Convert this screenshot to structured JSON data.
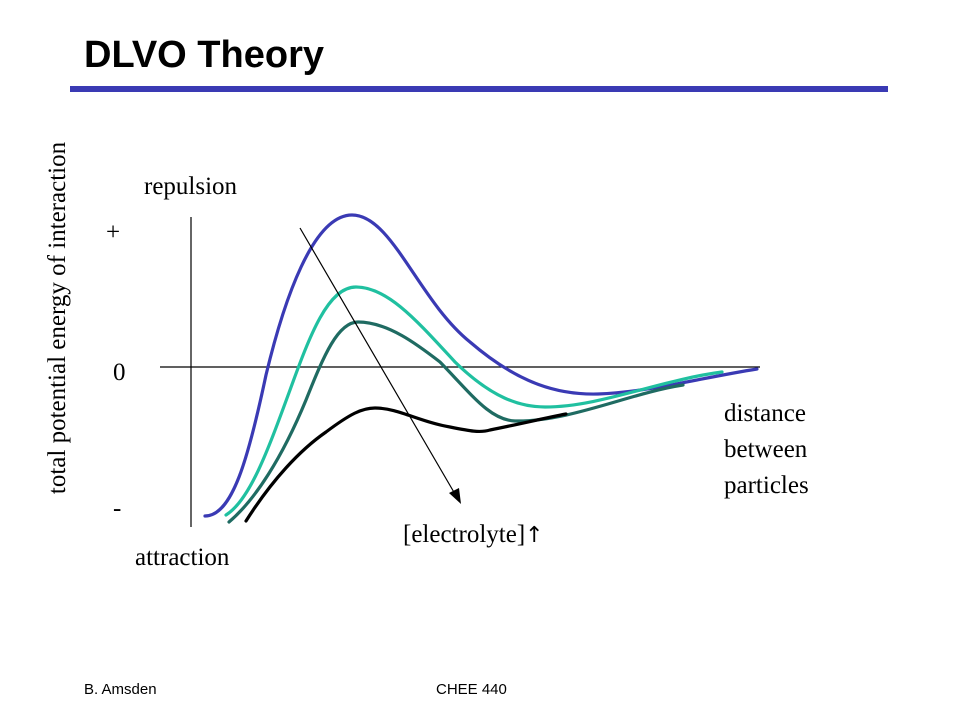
{
  "slide": {
    "title": "DLVO Theory",
    "footer_left": "B. Amsden",
    "footer_center": "CHEE 440"
  },
  "diagram": {
    "y_axis_label": "total potential energy  of interaction",
    "x_axis_label_lines": [
      "distance",
      "between",
      "particles"
    ],
    "top_label": "repulsion",
    "bottom_label": "attraction",
    "plus_sign": "+",
    "zero_mark": "0",
    "minus_sign": "-",
    "arrow_label": "[electrolyte]",
    "arrow_symbol": "↑",
    "curves": [
      {
        "color": "#3a3ab4"
      },
      {
        "color": "#20c0a0"
      },
      {
        "color": "#1f6b62"
      },
      {
        "color": "#000000"
      }
    ],
    "title_rule_color": "#3a3ab4"
  }
}
